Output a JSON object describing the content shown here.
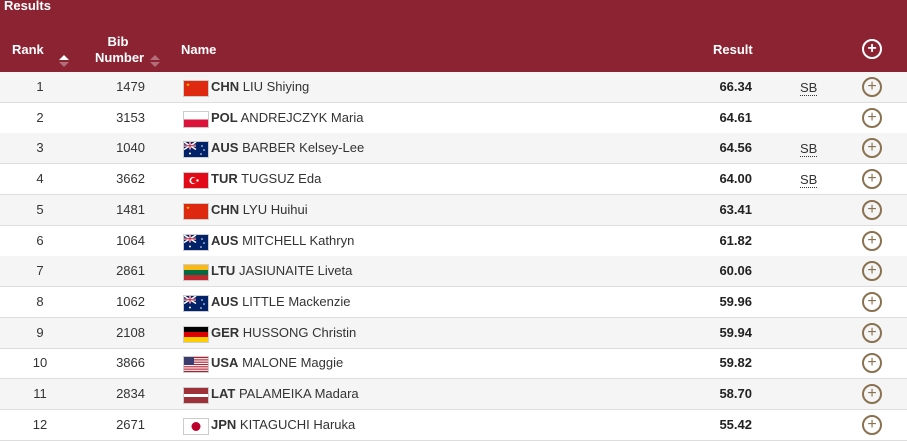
{
  "header": {
    "title": "Results",
    "rank": "Rank",
    "bib_line1": "Bib",
    "bib_line2": "Number",
    "name": "Name",
    "result": "Result",
    "expand_icon": "plus-circle-icon"
  },
  "colors": {
    "header_bg": "#8b2332",
    "icon": "#8a7150"
  },
  "rows": [
    {
      "rank": "1",
      "bib": "1479",
      "noc": "CHN",
      "flag": "CHN",
      "name": "LIU Shiying",
      "result": "66.34",
      "note": "SB"
    },
    {
      "rank": "2",
      "bib": "3153",
      "noc": "POL",
      "flag": "POL",
      "name": "ANDREJCZYK Maria",
      "result": "64.61",
      "note": ""
    },
    {
      "rank": "3",
      "bib": "1040",
      "noc": "AUS",
      "flag": "AUS",
      "name": "BARBER Kelsey-Lee",
      "result": "64.56",
      "note": "SB"
    },
    {
      "rank": "4",
      "bib": "3662",
      "noc": "TUR",
      "flag": "TUR",
      "name": "TUGSUZ Eda",
      "result": "64.00",
      "note": "SB"
    },
    {
      "rank": "5",
      "bib": "1481",
      "noc": "CHN",
      "flag": "CHN",
      "name": "LYU Huihui",
      "result": "63.41",
      "note": ""
    },
    {
      "rank": "6",
      "bib": "1064",
      "noc": "AUS",
      "flag": "AUS",
      "name": "MITCHELL Kathryn",
      "result": "61.82",
      "note": ""
    },
    {
      "rank": "7",
      "bib": "2861",
      "noc": "LTU",
      "flag": "LTU",
      "name": "JASIUNAITE Liveta",
      "result": "60.06",
      "note": ""
    },
    {
      "rank": "8",
      "bib": "1062",
      "noc": "AUS",
      "flag": "AUS",
      "name": "LITTLE Mackenzie",
      "result": "59.96",
      "note": ""
    },
    {
      "rank": "9",
      "bib": "2108",
      "noc": "GER",
      "flag": "GER",
      "name": "HUSSONG Christin",
      "result": "59.94",
      "note": ""
    },
    {
      "rank": "10",
      "bib": "3866",
      "noc": "USA",
      "flag": "USA",
      "name": "MALONE Maggie",
      "result": "59.82",
      "note": ""
    },
    {
      "rank": "11",
      "bib": "2834",
      "noc": "LAT",
      "flag": "LAT",
      "name": "PALAMEIKA Madara",
      "result": "58.70",
      "note": ""
    },
    {
      "rank": "12",
      "bib": "2671",
      "noc": "JPN",
      "flag": "JPN",
      "name": "KITAGUCHI Haruka",
      "result": "55.42",
      "note": ""
    }
  ]
}
